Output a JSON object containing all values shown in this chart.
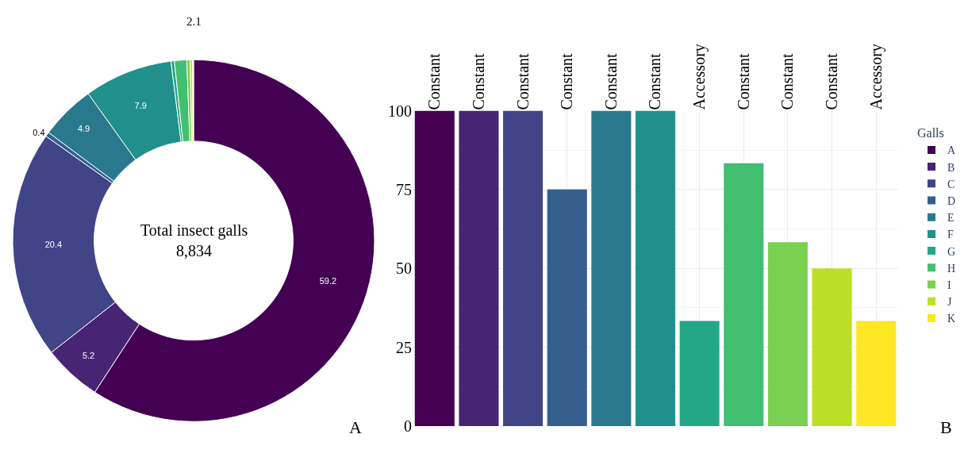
{
  "chart_data": [
    {
      "type": "donut",
      "categories": [
        "A",
        "B",
        "C",
        "D",
        "E",
        "F",
        "G",
        "H",
        "I",
        "J",
        "K"
      ],
      "values": [
        59.2,
        5.2,
        20.4,
        0.4,
        4.9,
        7.9,
        0.3,
        1.1,
        0.3,
        0.2,
        0.1
      ],
      "value_labels": [
        "59.2",
        "5.2",
        "20.4",
        "0.4",
        "4.9",
        "7.9",
        null,
        null,
        null,
        null,
        null
      ],
      "colors": [
        "#440154",
        "#482475",
        "#414487",
        "#355f8d",
        "#2a788e",
        "#21908d",
        "#22a884",
        "#42be71",
        "#7ad151",
        "#bbdf27",
        "#fde725"
      ],
      "legend": "right",
      "legend_title": "Galls",
      "annotations": [
        "Total insect galls\n8,834",
        "2.1",
        "A"
      ]
    },
    {
      "type": "bar",
      "categories": [
        "Constant",
        "Constant",
        "Constant",
        "Constant",
        "Constant",
        "Constant",
        "Accessory",
        "Constant",
        "Constant",
        "Constant",
        "Accessory"
      ],
      "values": [
        100,
        100,
        100,
        75,
        100,
        100,
        33.3,
        83.3,
        58.3,
        50,
        33.3
      ],
      "colors": [
        "#440154",
        "#482475",
        "#414487",
        "#355f8d",
        "#2a788e",
        "#21908d",
        "#22a884",
        "#42be71",
        "#7ad151",
        "#bbdf27",
        "#fde725"
      ],
      "ylim": [
        0,
        100
      ],
      "yticks": [
        0,
        25,
        50,
        75,
        100
      ],
      "grid": true,
      "annotations": [
        "B"
      ]
    }
  ]
}
